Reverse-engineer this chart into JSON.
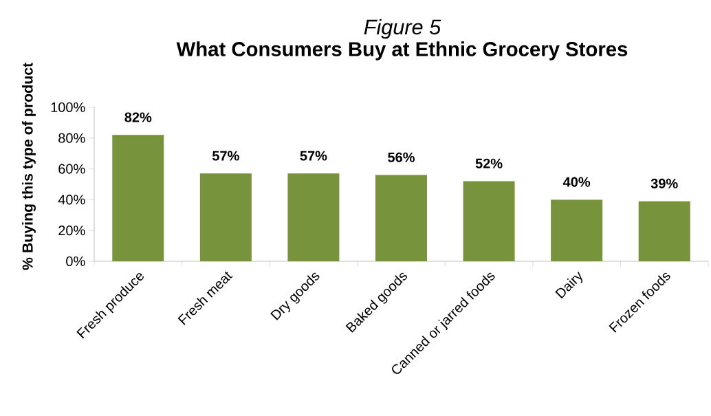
{
  "chart_data": {
    "type": "bar",
    "title": "*Figure 5*",
    "subtitle": "What Consumers Buy at Ethnic Grocery Stores",
    "ylabel": "% Buying this type of product",
    "categories": [
      "Fresh produce",
      "Fresh meat",
      "Dry goods",
      "Baked goods",
      "Canned or jarred foods",
      "Dairy",
      "Frozen foods"
    ],
    "values": [
      82,
      57,
      57,
      56,
      52,
      40,
      39
    ],
    "value_labels": [
      "82%",
      "57%",
      "57%",
      "56%",
      "52%",
      "40%",
      "39%"
    ],
    "color": "#77933c",
    "ylim": [
      0,
      100
    ],
    "yticks": [
      {
        "value": 0,
        "label": "0%"
      },
      {
        "value": 20,
        "label": "20%"
      },
      {
        "value": 40,
        "label": "40%"
      },
      {
        "value": 60,
        "label": "60%"
      },
      {
        "value": 80,
        "label": "80%"
      },
      {
        "value": 100,
        "label": "100%"
      }
    ],
    "grid": false
  }
}
